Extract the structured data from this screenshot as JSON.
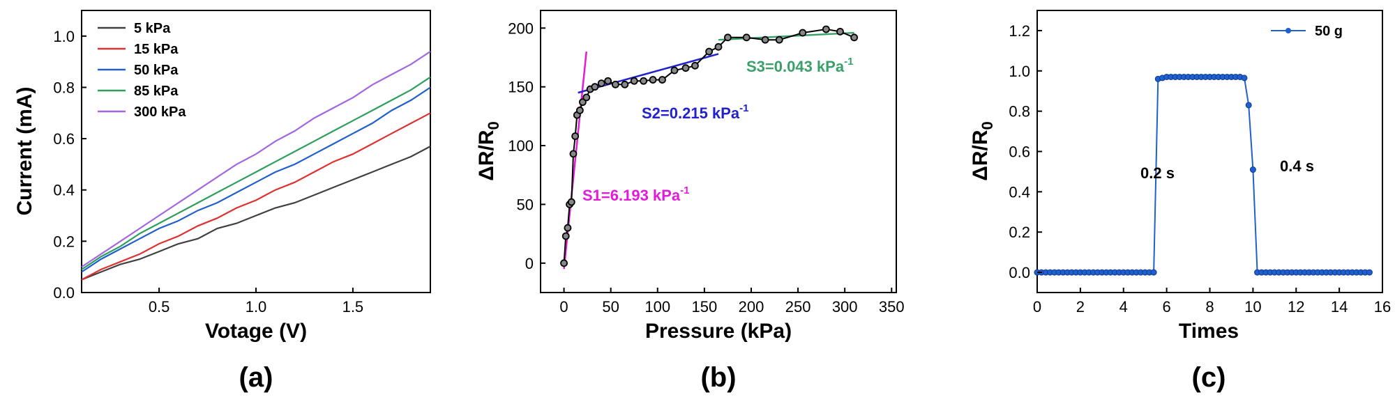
{
  "chart_data": [
    {
      "id": "a",
      "type": "line",
      "panel_label": "(a)",
      "xlabel": "Votage (V)",
      "ylabel": "Current (mA)",
      "xlim": [
        0.1,
        1.9
      ],
      "ylim": [
        0.0,
        1.1
      ],
      "xticks": [
        0.5,
        1.0,
        1.5
      ],
      "xtick_labels": [
        "0.5",
        "1.0",
        "1.5"
      ],
      "yticks": [
        0.0,
        0.2,
        0.4,
        0.6,
        0.8,
        1.0
      ],
      "ytick_labels": [
        "0.0",
        "0.2",
        "0.4",
        "0.6",
        "0.8",
        "1.0"
      ],
      "legend_position": "top-left",
      "series": [
        {
          "name": "5 kPa",
          "color": "#404040",
          "x": [
            0.1,
            0.2,
            0.3,
            0.4,
            0.5,
            0.6,
            0.7,
            0.8,
            0.9,
            1.0,
            1.1,
            1.2,
            1.3,
            1.4,
            1.5,
            1.6,
            1.7,
            1.8,
            1.9
          ],
          "y": [
            0.05,
            0.08,
            0.11,
            0.13,
            0.16,
            0.19,
            0.21,
            0.25,
            0.27,
            0.3,
            0.33,
            0.35,
            0.38,
            0.41,
            0.44,
            0.47,
            0.5,
            0.53,
            0.57
          ]
        },
        {
          "name": "15 kPa",
          "color": "#e03030",
          "x": [
            0.1,
            0.2,
            0.3,
            0.4,
            0.5,
            0.6,
            0.7,
            0.8,
            0.9,
            1.0,
            1.1,
            1.2,
            1.3,
            1.4,
            1.5,
            1.6,
            1.7,
            1.8,
            1.9
          ],
          "y": [
            0.05,
            0.09,
            0.12,
            0.15,
            0.19,
            0.22,
            0.26,
            0.29,
            0.33,
            0.36,
            0.4,
            0.43,
            0.47,
            0.51,
            0.54,
            0.58,
            0.62,
            0.66,
            0.7
          ]
        },
        {
          "name": "50 kPa",
          "color": "#1f5fd0",
          "x": [
            0.1,
            0.2,
            0.3,
            0.4,
            0.5,
            0.6,
            0.7,
            0.8,
            0.9,
            1.0,
            1.1,
            1.2,
            1.3,
            1.4,
            1.5,
            1.6,
            1.7,
            1.8,
            1.9
          ],
          "y": [
            0.08,
            0.13,
            0.17,
            0.21,
            0.25,
            0.28,
            0.32,
            0.35,
            0.39,
            0.43,
            0.47,
            0.5,
            0.54,
            0.58,
            0.62,
            0.66,
            0.71,
            0.75,
            0.8
          ]
        },
        {
          "name": "85 kPa",
          "color": "#2e9e5b",
          "x": [
            0.1,
            0.2,
            0.3,
            0.4,
            0.5,
            0.6,
            0.7,
            0.8,
            0.9,
            1.0,
            1.1,
            1.2,
            1.3,
            1.4,
            1.5,
            1.6,
            1.7,
            1.8,
            1.9
          ],
          "y": [
            0.09,
            0.14,
            0.18,
            0.23,
            0.27,
            0.31,
            0.35,
            0.39,
            0.43,
            0.47,
            0.51,
            0.55,
            0.59,
            0.63,
            0.67,
            0.71,
            0.75,
            0.79,
            0.84
          ]
        },
        {
          "name": "300 kPa",
          "color": "#a266e0",
          "x": [
            0.1,
            0.2,
            0.3,
            0.4,
            0.5,
            0.6,
            0.7,
            0.8,
            0.9,
            1.0,
            1.1,
            1.2,
            1.3,
            1.4,
            1.5,
            1.6,
            1.7,
            1.8,
            1.9
          ],
          "y": [
            0.1,
            0.15,
            0.2,
            0.25,
            0.3,
            0.35,
            0.4,
            0.45,
            0.5,
            0.54,
            0.59,
            0.63,
            0.68,
            0.72,
            0.76,
            0.81,
            0.85,
            0.89,
            0.94
          ]
        }
      ]
    },
    {
      "id": "b",
      "type": "scatter",
      "panel_label": "(b)",
      "xlabel": "Pressure (kPa)",
      "ylabel": "ΔR/R",
      "ylabel_sub": "0",
      "xlim": [
        -25,
        355
      ],
      "ylim": [
        -25,
        215
      ],
      "xticks": [
        0,
        50,
        100,
        150,
        200,
        250,
        300,
        350
      ],
      "xtick_labels": [
        "0",
        "50",
        "100",
        "150",
        "200",
        "250",
        "300",
        "350"
      ],
      "yticks": [
        0,
        50,
        100,
        150,
        200
      ],
      "ytick_labels": [
        "0",
        "50",
        "100",
        "150",
        "200"
      ],
      "series": [
        {
          "name": "data",
          "color": "#000000",
          "x": [
            0,
            2,
            4,
            6,
            8,
            10,
            12,
            14,
            17,
            20,
            24,
            28,
            33,
            40,
            47,
            55,
            65,
            75,
            85,
            95,
            105,
            118,
            130,
            140,
            155,
            165,
            175,
            195,
            215,
            230,
            255,
            280,
            295,
            310
          ],
          "y": [
            0,
            23,
            30,
            50,
            52,
            93,
            108,
            126,
            130,
            137,
            141,
            148,
            150,
            153,
            155,
            152,
            152,
            155,
            155,
            156,
            156,
            164,
            166,
            168,
            180,
            184,
            192,
            192,
            190,
            190,
            196,
            199,
            197,
            192
          ]
        }
      ],
      "fits": [
        {
          "name": "S1",
          "label": "S1=6.193 kPa",
          "sup": "-1",
          "color": "#e41ad9",
          "x": [
            0,
            24
          ],
          "y": [
            -5,
            180
          ]
        },
        {
          "name": "S2",
          "label": "S2=0.215 kPa",
          "sup": "-1",
          "color": "#2222cc",
          "x": [
            15,
            165
          ],
          "y": [
            145,
            178
          ]
        },
        {
          "name": "S3",
          "label": "S3=0.043 kPa",
          "sup": "-1",
          "color": "#3aa06a",
          "x": [
            165,
            310
          ],
          "y": [
            190,
            196
          ]
        }
      ]
    },
    {
      "id": "c",
      "type": "line",
      "panel_label": "(c)",
      "xlabel": "Times",
      "ylabel": "ΔR/R",
      "ylabel_sub": "0",
      "xlim": [
        0,
        16
      ],
      "ylim": [
        -0.1,
        1.3
      ],
      "xticks": [
        0,
        2,
        4,
        6,
        8,
        10,
        12,
        14,
        16
      ],
      "xtick_labels": [
        "0",
        "2",
        "4",
        "6",
        "8",
        "10",
        "12",
        "14",
        "16"
      ],
      "yticks": [
        0.0,
        0.2,
        0.4,
        0.6,
        0.8,
        1.0,
        1.2
      ],
      "ytick_labels": [
        "0.0",
        "0.2",
        "0.4",
        "0.6",
        "0.8",
        "1.0",
        "1.2"
      ],
      "legend_position": "top-right",
      "annotations": [
        "0.2 s",
        "0.4 s"
      ],
      "series": [
        {
          "name": "50 g",
          "color": "#1f5fd0",
          "x": [
            0,
            0.2,
            0.4,
            0.6,
            0.8,
            1.0,
            1.2,
            1.4,
            1.6,
            1.8,
            2.0,
            2.2,
            2.4,
            2.6,
            2.8,
            3.0,
            3.2,
            3.4,
            3.6,
            3.8,
            4.0,
            4.2,
            4.4,
            4.6,
            4.8,
            5.0,
            5.2,
            5.4,
            5.6,
            5.8,
            6.0,
            6.2,
            6.4,
            6.6,
            6.8,
            7.0,
            7.2,
            7.4,
            7.6,
            7.8,
            8.0,
            8.2,
            8.4,
            8.6,
            8.8,
            9.0,
            9.2,
            9.4,
            9.6,
            9.8,
            10.0,
            10.2,
            10.4,
            10.6,
            10.8,
            11.0,
            11.2,
            11.4,
            11.6,
            11.8,
            12.0,
            12.2,
            12.4,
            12.6,
            12.8,
            13.0,
            13.2,
            13.4,
            13.6,
            13.8,
            14.0,
            14.2,
            14.4,
            14.6,
            14.8,
            15.0,
            15.2,
            15.4
          ],
          "y": [
            0,
            0,
            0,
            0,
            0,
            0,
            0,
            0,
            0,
            0,
            0,
            0,
            0,
            0,
            0,
            0,
            0,
            0,
            0,
            0,
            0,
            0,
            0,
            0,
            0,
            0,
            0,
            0,
            0.96,
            0.965,
            0.97,
            0.97,
            0.97,
            0.97,
            0.97,
            0.97,
            0.97,
            0.97,
            0.97,
            0.97,
            0.97,
            0.97,
            0.97,
            0.97,
            0.97,
            0.97,
            0.97,
            0.97,
            0.965,
            0.83,
            0.51,
            0,
            0,
            0,
            0,
            0,
            0,
            0,
            0,
            0,
            0,
            0,
            0,
            0,
            0,
            0,
            0,
            0,
            0,
            0,
            0,
            0,
            0,
            0,
            0,
            0,
            0,
            0
          ]
        }
      ]
    }
  ]
}
